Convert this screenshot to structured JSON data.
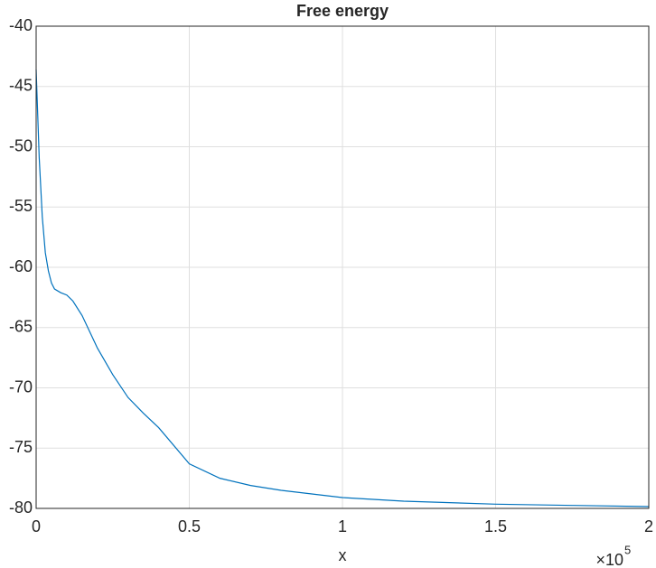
{
  "chart_data": {
    "type": "line",
    "title": "Free energy",
    "x_label": "x",
    "x_scale_base": "×10",
    "x_scale_exponent": "5",
    "x": [
      0,
      0.01,
      0.02,
      0.03,
      0.04,
      0.05,
      0.06,
      0.08,
      0.1,
      0.12,
      0.15,
      0.2,
      0.25,
      0.3,
      0.35,
      0.4,
      0.5,
      0.6,
      0.7,
      0.8,
      1.0,
      1.2,
      1.5,
      1.75,
      2.0
    ],
    "series": [
      {
        "color": "#0072bd",
        "values": [
          -43.6,
          -50.9,
          -55.8,
          -58.8,
          -60.3,
          -61.3,
          -61.8,
          -62.1,
          -62.3,
          -62.8,
          -64.0,
          -66.7,
          -68.9,
          -70.8,
          -72.1,
          -73.3,
          -76.3,
          -77.5,
          -78.1,
          -78.5,
          -79.1,
          -79.4,
          -79.65,
          -79.75,
          -79.85
        ]
      }
    ],
    "xlim": [
      0,
      2
    ],
    "xticks": [
      0,
      0.5,
      1,
      1.5,
      2
    ],
    "ylim": [
      -80,
      -40
    ],
    "yticks": [
      -80,
      -75,
      -70,
      -65,
      -60,
      -55,
      -50,
      -45,
      -40
    ],
    "grid": true
  }
}
